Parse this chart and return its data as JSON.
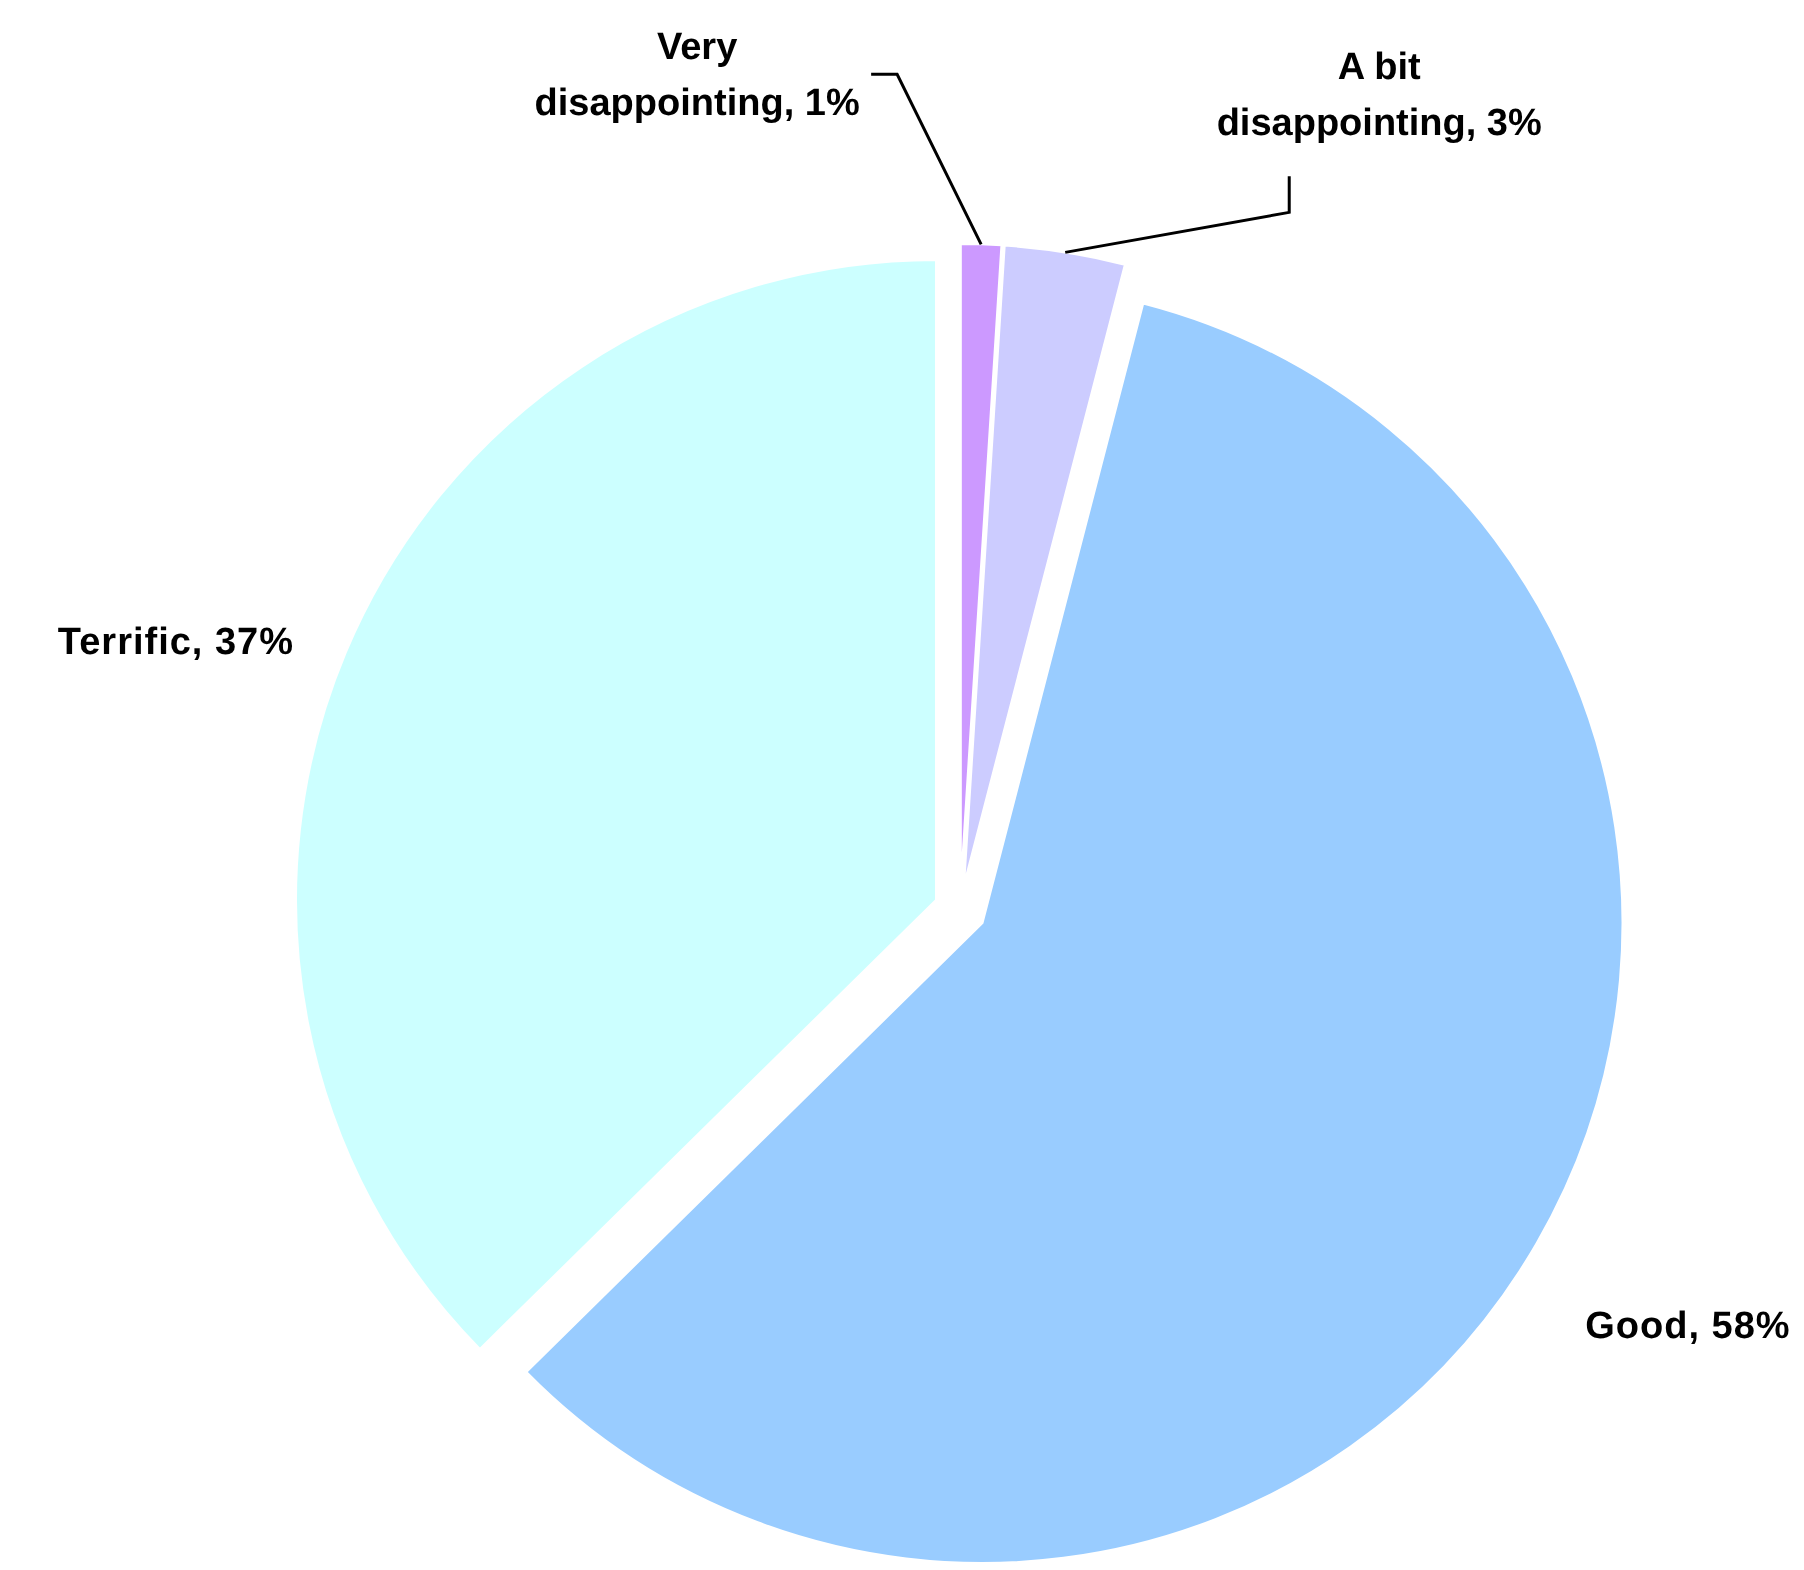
{
  "chart_data": {
    "type": "pie",
    "categories": [
      "Very disappointing",
      "A bit disappointing",
      "Good",
      "Terrific"
    ],
    "values": [
      1,
      3,
      58,
      37
    ],
    "colors": [
      "#cc99ff",
      "#ccccff",
      "#99ccff",
      "#ccffff"
    ],
    "value_labels": [
      "1%",
      "3%",
      "58%",
      "37%"
    ]
  }
}
